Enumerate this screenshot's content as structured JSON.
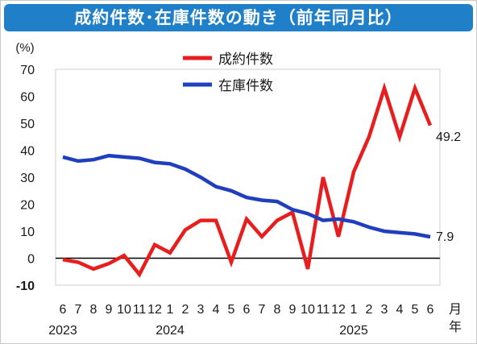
{
  "page": {
    "title": "成約件数･在庫件数の動き（前年同月比）"
  },
  "colors": {
    "title_bg": "#1f7fc8",
    "contract": "#e81e1e",
    "inventory": "#1f3fbf",
    "negative_tick": "#e81e1e"
  },
  "chart_data": {
    "type": "line",
    "ylabel": "(%)",
    "ylim": [
      -10,
      70
    ],
    "yticks": [
      70,
      60,
      50,
      40,
      30,
      20,
      10,
      0,
      -10
    ],
    "reference_line": 0,
    "x_month_unit": "月",
    "x_year_unit": "年",
    "x": [
      "2023-06",
      "2023-07",
      "2023-08",
      "2023-09",
      "2023-10",
      "2023-11",
      "2023-12",
      "2024-01",
      "2024-02",
      "2024-03",
      "2024-04",
      "2024-05",
      "2024-06",
      "2024-07",
      "2024-08",
      "2024-09",
      "2024-10",
      "2024-11",
      "2024-12",
      "2025-01",
      "2025-02",
      "2025-03",
      "2025-04",
      "2025-05",
      "2025-06"
    ],
    "month_labels": [
      "6",
      "7",
      "8",
      "9",
      "10",
      "11",
      "12",
      "1",
      "2",
      "3",
      "4",
      "5",
      "6",
      "7",
      "8",
      "9",
      "10",
      "11",
      "12",
      "1",
      "2",
      "3",
      "4",
      "5",
      "6"
    ],
    "year_labels": [
      {
        "index": 0,
        "label": "2023"
      },
      {
        "index": 7,
        "label": "2024"
      },
      {
        "index": 19,
        "label": "2025"
      }
    ],
    "legend": {
      "placement": "top-center"
    },
    "series": [
      {
        "name": "成約件数",
        "color": "#e81e1e",
        "values": [
          -0.5,
          -1.5,
          -4,
          -2,
          1,
          -6,
          5,
          2,
          10.5,
          14,
          14,
          -1.5,
          14.5,
          8,
          14,
          17,
          -4,
          30,
          8,
          32,
          45,
          63,
          45,
          63,
          49.2
        ],
        "end_label": "49.2"
      },
      {
        "name": "在庫件数",
        "color": "#1f3fbf",
        "values": [
          37.5,
          36,
          36.5,
          38,
          37.5,
          37,
          35.5,
          35,
          33,
          30,
          26.5,
          25,
          22.5,
          21.5,
          21,
          18,
          16.5,
          14,
          14.5,
          13.5,
          11.5,
          10,
          9.5,
          9,
          7.9
        ],
        "end_label": "7.9"
      }
    ]
  }
}
